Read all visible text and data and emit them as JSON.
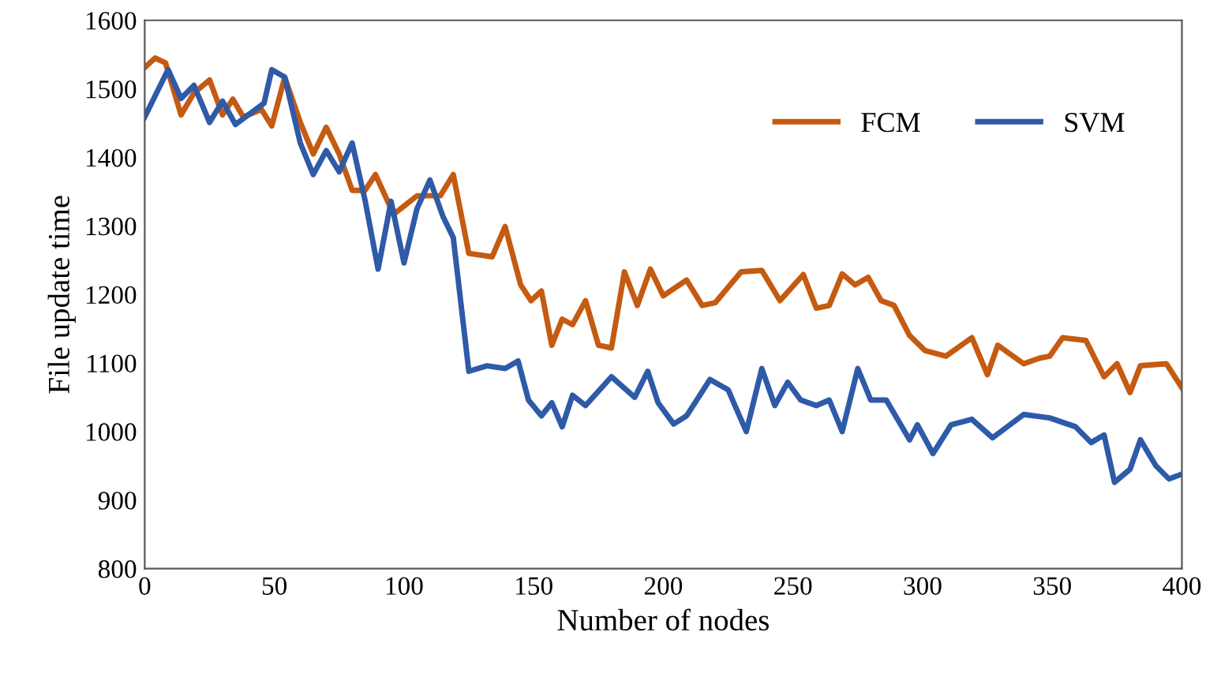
{
  "chart_data": {
    "type": "line",
    "xlabel": "Number of nodes",
    "ylabel": "File update time",
    "xlim": [
      0,
      400
    ],
    "ylim": [
      800,
      1600
    ],
    "xticks": [
      0,
      50,
      100,
      150,
      200,
      250,
      300,
      350,
      400
    ],
    "yticks": [
      800,
      900,
      1000,
      1100,
      1200,
      1300,
      1400,
      1500,
      1600
    ],
    "grid": false,
    "legend": "top right",
    "marker": "none",
    "line_style": "solid",
    "series": [
      {
        "name": "FCM",
        "color": "#c55a11",
        "x": [
          0,
          4,
          8,
          14,
          19,
          25,
          30,
          34,
          38,
          45,
          49,
          54,
          60,
          65,
          70,
          75,
          80,
          85,
          89,
          96,
          105,
          114,
          119,
          125,
          134,
          139,
          145,
          149,
          153,
          157,
          161,
          165,
          170,
          175,
          180,
          185,
          190,
          195,
          200,
          209,
          215,
          220,
          230,
          238,
          245,
          254,
          259,
          264,
          269,
          274,
          279,
          284,
          289,
          295,
          301,
          309,
          319,
          325,
          329,
          339,
          345,
          349,
          354,
          363,
          370,
          375,
          380,
          384,
          394,
          400
        ],
        "values": [
          1531,
          1545,
          1538,
          1462,
          1494,
          1513,
          1462,
          1485,
          1459,
          1470,
          1446,
          1517,
          1451,
          1405,
          1444,
          1405,
          1352,
          1352,
          1375,
          1317,
          1344,
          1344,
          1375,
          1260,
          1255,
          1299,
          1214,
          1191,
          1205,
          1126,
          1164,
          1156,
          1191,
          1126,
          1122,
          1233,
          1184,
          1237,
          1198,
          1221,
          1184,
          1188,
          1233,
          1235,
          1191,
          1229,
          1180,
          1184,
          1230,
          1214,
          1225,
          1191,
          1184,
          1140,
          1118,
          1110,
          1137,
          1083,
          1126,
          1099,
          1107,
          1110,
          1137,
          1133,
          1080,
          1099,
          1057,
          1096,
          1099,
          1064
        ]
      },
      {
        "name": "SVM",
        "color": "#2e5aa8",
        "x": [
          0,
          9,
          14,
          19,
          25,
          30,
          35,
          46,
          49,
          54,
          60,
          65,
          70,
          75,
          80,
          85,
          90,
          95,
          100,
          105,
          110,
          115,
          119,
          125,
          132,
          139,
          144,
          148,
          153,
          157,
          161,
          165,
          170,
          180,
          189,
          194,
          198,
          204,
          209,
          218,
          225,
          232,
          238,
          243,
          248,
          253,
          259,
          264,
          269,
          275,
          280,
          286,
          295,
          298,
          304,
          311,
          319,
          327,
          339,
          349,
          359,
          365,
          370,
          374,
          380,
          384,
          390,
          395,
          400
        ],
        "values": [
          1459,
          1528,
          1486,
          1505,
          1451,
          1482,
          1448,
          1479,
          1528,
          1517,
          1421,
          1375,
          1410,
          1379,
          1421,
          1337,
          1237,
          1336,
          1246,
          1325,
          1367,
          1314,
          1283,
          1088,
          1096,
          1092,
          1103,
          1046,
          1023,
          1042,
          1007,
          1053,
          1038,
          1080,
          1050,
          1088,
          1042,
          1011,
          1023,
          1076,
          1061,
          1000,
          1092,
          1038,
          1072,
          1046,
          1038,
          1046,
          1000,
          1092,
          1046,
          1046,
          988,
          1010,
          968,
          1010,
          1018,
          991,
          1025,
          1020,
          1007,
          984,
          995,
          926,
          945,
          988,
          950,
          931,
          938
        ]
      }
    ]
  }
}
